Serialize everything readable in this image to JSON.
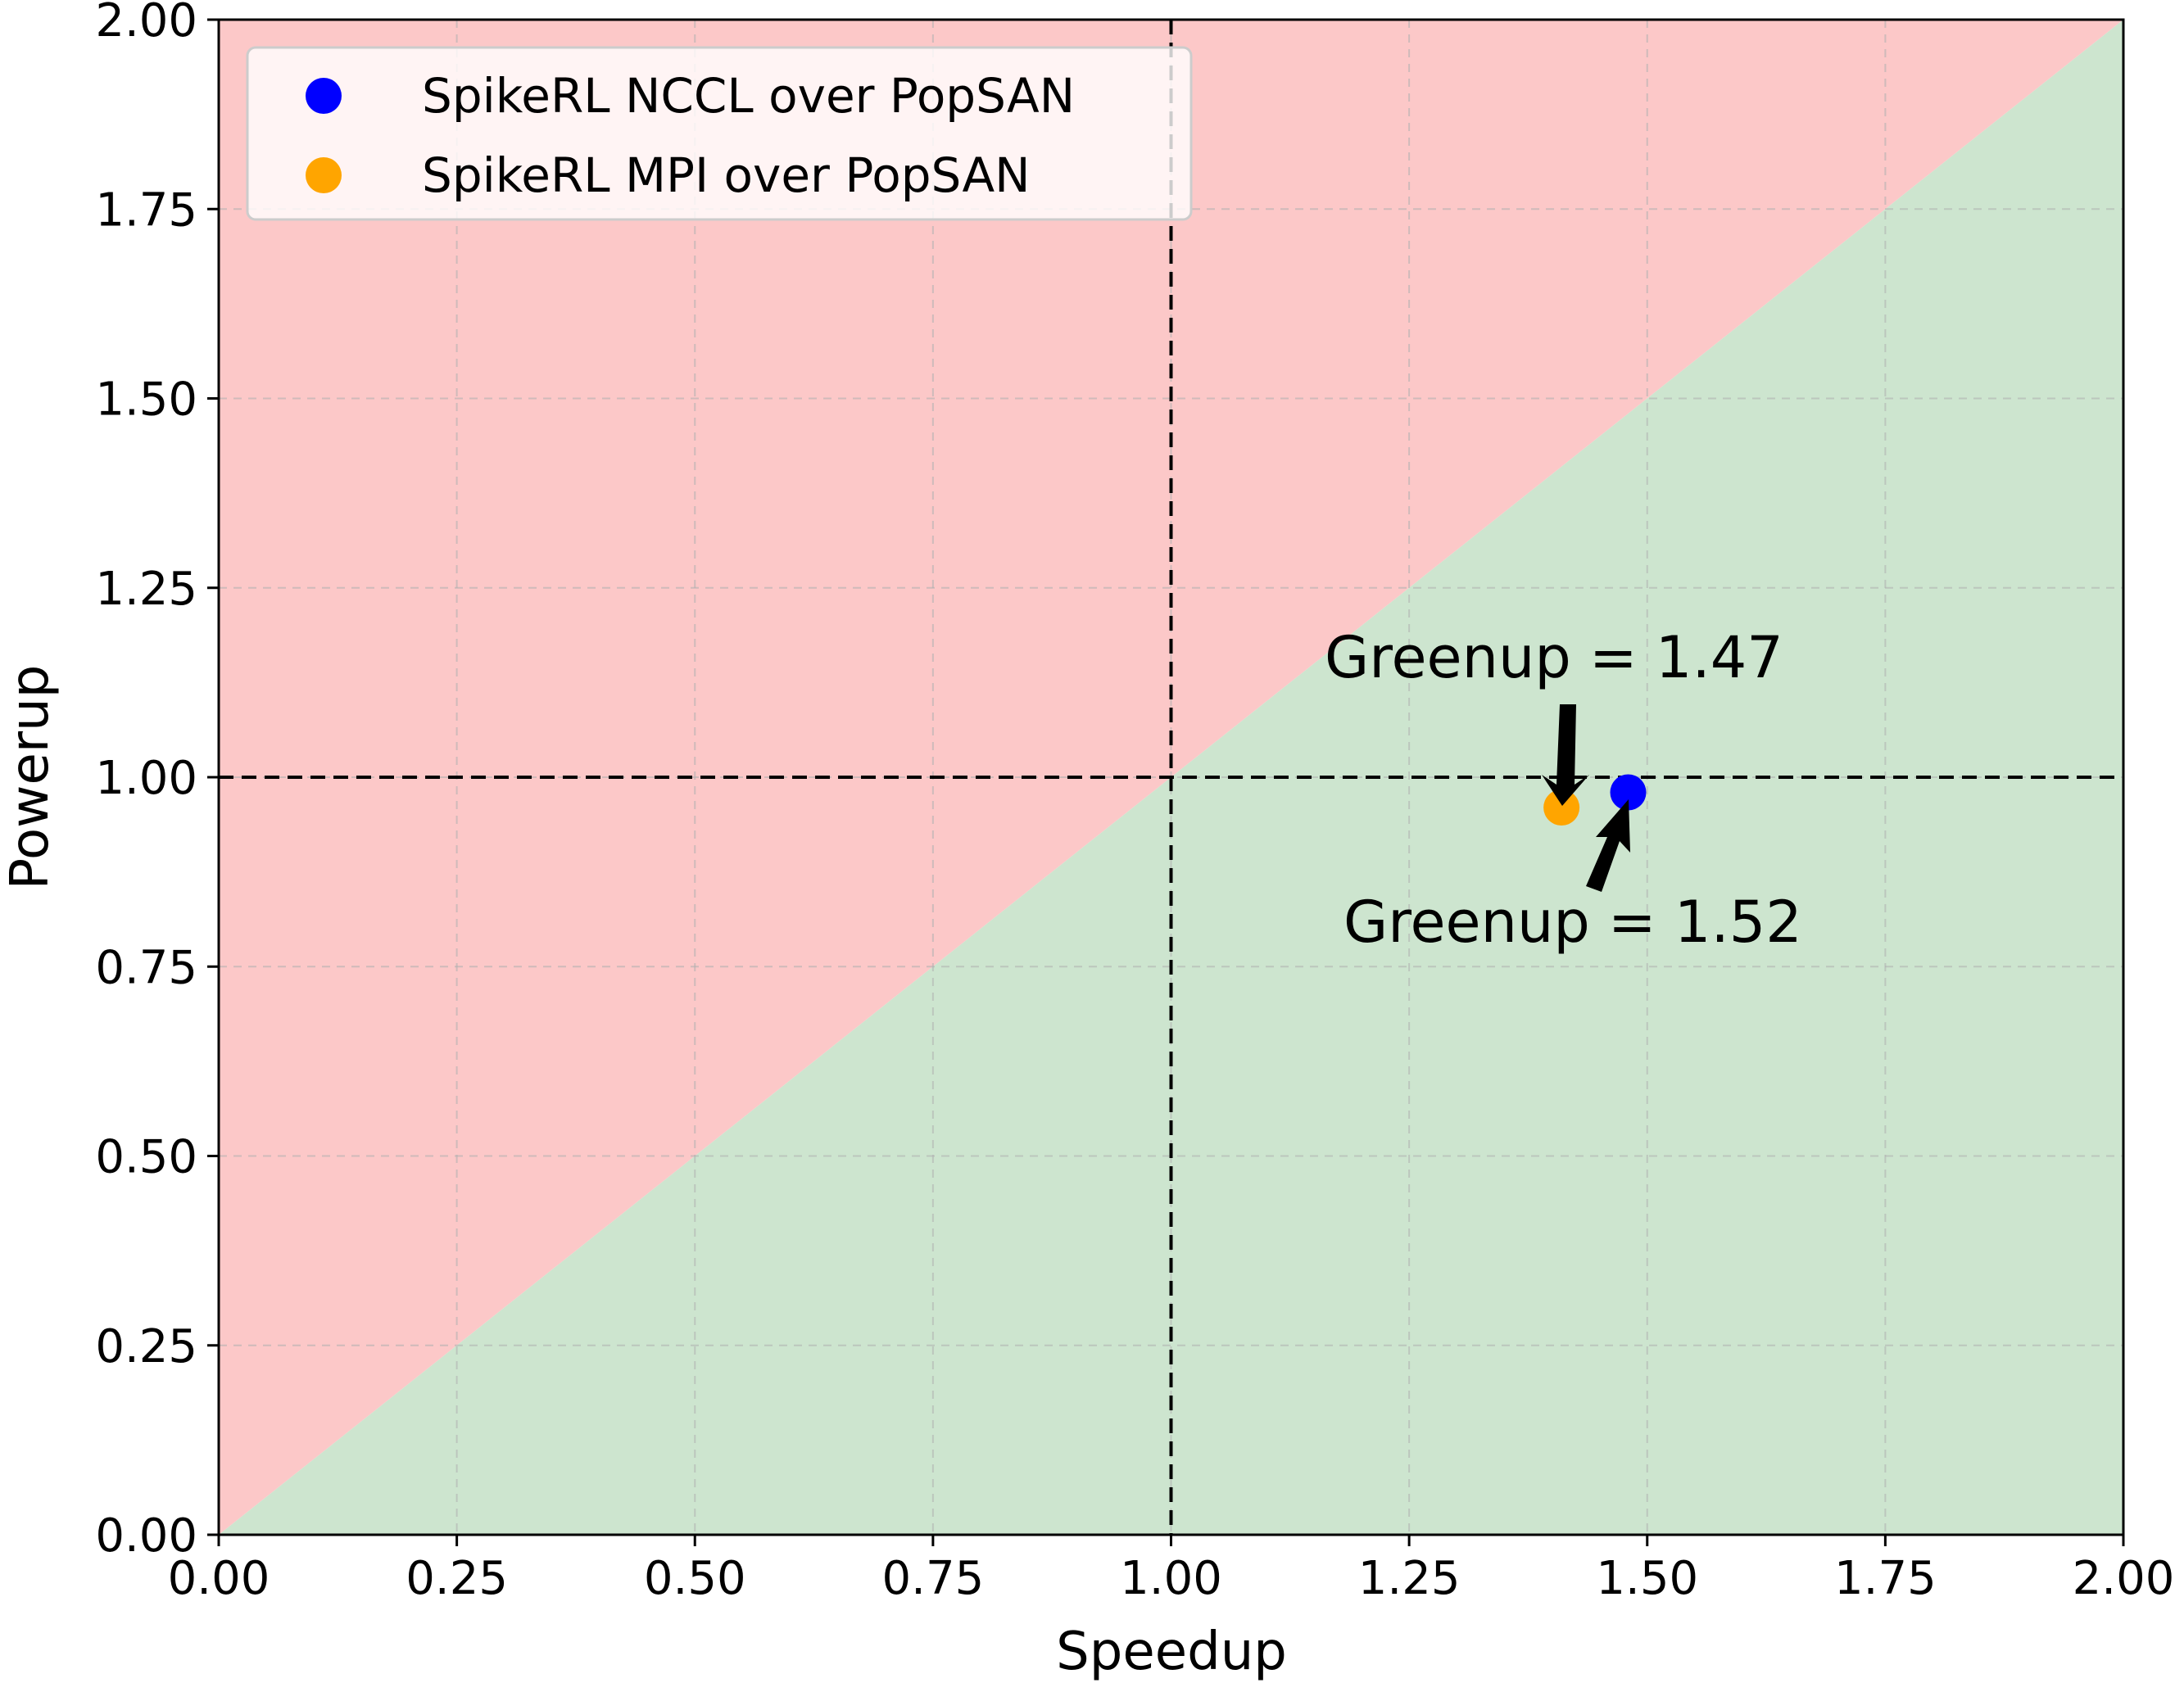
{
  "chart_data": {
    "type": "scatter",
    "xlabel": "Speedup",
    "ylabel": "Powerup",
    "xlim": [
      0,
      2
    ],
    "ylim": [
      0,
      2
    ],
    "x_ticks": [
      "0.00",
      "0.25",
      "0.50",
      "0.75",
      "1.00",
      "1.25",
      "1.50",
      "1.75",
      "2.00"
    ],
    "y_ticks": [
      "0.00",
      "0.25",
      "0.50",
      "0.75",
      "1.00",
      "1.25",
      "1.50",
      "1.75",
      "2.00"
    ],
    "grid": true,
    "legend_position": "top-left",
    "regions": [
      {
        "name": "above-diagonal",
        "color": "#fcc8c8"
      },
      {
        "name": "below-diagonal",
        "color": "#cde5cf"
      }
    ],
    "reference_lines": [
      {
        "orientation": "vertical",
        "value": 1.0,
        "style": "dashed"
      },
      {
        "orientation": "horizontal",
        "value": 1.0,
        "style": "dashed"
      }
    ],
    "series": [
      {
        "name": "SpikeRL NCCL over PopSAN",
        "color": "#0000ff",
        "points": [
          {
            "x": 1.48,
            "y": 0.98
          }
        ]
      },
      {
        "name": "SpikeRL MPI over PopSAN",
        "color": "#ffa500",
        "points": [
          {
            "x": 1.41,
            "y": 0.96
          }
        ]
      }
    ],
    "annotations": [
      {
        "text": "Greenup = 1.47",
        "series": 1
      },
      {
        "text": "Greenup = 1.52",
        "series": 0
      }
    ]
  }
}
